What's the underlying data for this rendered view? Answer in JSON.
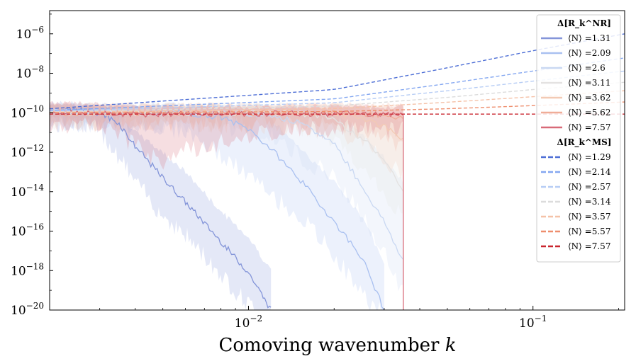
{
  "chart_data": {
    "type": "line",
    "xscale": "log",
    "yscale": "log",
    "xlim": [
      0.002,
      0.21
    ],
    "ylim": [
      1e-20,
      1.5e-05
    ],
    "xlabel": "Comoving wavenumber k",
    "ylabel": "",
    "x_ticks": [
      {
        "value": 0.01,
        "label": "10^-2"
      },
      {
        "value": 0.1,
        "label": "10^-1"
      }
    ],
    "y_ticks": [
      {
        "value": 1e-06,
        "label": "10^-6"
      },
      {
        "value": 1e-08,
        "label": "10^-8"
      },
      {
        "value": 1e-10,
        "label": "10^-10"
      },
      {
        "value": 1e-12,
        "label": "10^-12"
      },
      {
        "value": 1e-14,
        "label": "10^-14"
      },
      {
        "value": 1e-16,
        "label": "10^-16"
      },
      {
        "value": 1e-18,
        "label": "10^-18"
      },
      {
        "value": 1e-20,
        "label": "10^-20"
      }
    ],
    "legend": {
      "position": "upper-right",
      "groups": [
        {
          "title": "Δ[R_k^NR]",
          "style": "solid",
          "entries": [
            {
              "label": "⟨N⟩ =1.31",
              "color": "#8495d9"
            },
            {
              "label": "⟨N⟩ =2.09",
              "color": "#a9c0f0"
            },
            {
              "label": "⟨N⟩ =2.6",
              "color": "#c9d8f2"
            },
            {
              "label": "⟨N⟩ =3.11",
              "color": "#e4e2e1"
            },
            {
              "label": "⟨N⟩ =3.62",
              "color": "#f3cab4"
            },
            {
              "label": "⟨N⟩ =5.62",
              "color": "#f0ad98"
            },
            {
              "label": "⟨N⟩ =7.57",
              "color": "#d86a78"
            }
          ]
        },
        {
          "title": "Δ[R_k^MS]",
          "style": "dashed",
          "entries": [
            {
              "label": "⟨N⟩ =1.29",
              "color": "#4e6fd6"
            },
            {
              "label": "⟨N⟩ =2.14",
              "color": "#84a7f1"
            },
            {
              "label": "⟨N⟩ =2.57",
              "color": "#b7cdf5"
            },
            {
              "label": "⟨N⟩ =3.14",
              "color": "#dcdcdc"
            },
            {
              "label": "⟨N⟩ =3.57",
              "color": "#f5c2a8"
            },
            {
              "label": "⟨N⟩ =5.57",
              "color": "#ee8e6d"
            },
            {
              "label": "⟨N⟩ =7.57",
              "color": "#c9262f"
            }
          ]
        }
      ]
    },
    "series_dashed": [
      {
        "name": "⟨N⟩ =1.29",
        "color": "#4e6fd6",
        "x": [
          0.002,
          0.02,
          0.05,
          0.1,
          0.21
        ],
        "y": [
          1.6e-10,
          1.5e-09,
          1.9e-08,
          1.4e-07,
          1e-06
        ]
      },
      {
        "name": "⟨N⟩ =2.14",
        "color": "#84a7f1",
        "x": [
          0.002,
          0.02,
          0.05,
          0.1,
          0.21
        ],
        "y": [
          1.3e-10,
          5e-10,
          3e-09,
          1.3e-08,
          6e-08
        ]
      },
      {
        "name": "⟨N⟩ =2.57",
        "color": "#b7cdf5",
        "x": [
          0.002,
          0.02,
          0.05,
          0.1,
          0.21
        ],
        "y": [
          1.2e-10,
          3.2e-10,
          1.3e-09,
          4e-09,
          1.3e-08
        ]
      },
      {
        "name": "⟨N⟩ =3.14",
        "color": "#dcdcdc",
        "x": [
          0.002,
          0.02,
          0.05,
          0.1,
          0.21
        ],
        "y": [
          1.1e-10,
          2.2e-10,
          6e-10,
          1.5e-09,
          3.5e-09
        ]
      },
      {
        "name": "⟨N⟩ =3.57",
        "color": "#f5c2a8",
        "x": [
          0.002,
          0.02,
          0.05,
          0.1,
          0.21
        ],
        "y": [
          1.05e-10,
          1.6e-10,
          3.4e-10,
          6.5e-10,
          1.3e-09
        ]
      },
      {
        "name": "⟨N⟩ =5.57",
        "color": "#ee8e6d",
        "x": [
          0.002,
          0.02,
          0.05,
          0.1,
          0.21
        ],
        "y": [
          1e-10,
          1.15e-10,
          1.6e-10,
          2.3e-10,
          3.5e-10
        ]
      },
      {
        "name": "⟨N⟩ =7.57",
        "color": "#c9262f",
        "x": [
          0.002,
          0.21
        ],
        "y": [
          8.5e-11,
          8.5e-11
        ]
      }
    ],
    "series_solid": [
      {
        "name": "⟨N⟩ =1.31",
        "color": "#8495d9",
        "x": [
          0.002,
          0.0025,
          0.003,
          0.0035,
          0.004,
          0.005,
          0.006,
          0.008,
          0.01,
          0.012
        ],
        "y": [
          1.2e-10,
          1.4e-10,
          1e-10,
          3e-11,
          2e-12,
          5e-14,
          3e-15,
          3e-17,
          8e-19,
          1e-20
        ],
        "band_low": [
          3e-11,
          5e-11,
          2e-11,
          1e-12,
          5e-14,
          1e-15,
          1e-16,
          1e-18,
          3e-20,
          1e-20
        ],
        "band_high": [
          3e-10,
          3e-10,
          2e-10,
          1.2e-10,
          1e-11,
          1e-12,
          1e-13,
          1e-15,
          5e-17,
          1e-18
        ]
      },
      {
        "name": "⟨N⟩ =2.09",
        "color": "#a9c0f0",
        "x": [
          0.002,
          0.004,
          0.006,
          0.008,
          0.01,
          0.012,
          0.015,
          0.02,
          0.025,
          0.03
        ],
        "y": [
          1.2e-10,
          1.1e-10,
          1e-10,
          6e-11,
          1.5e-11,
          1.5e-12,
          5e-14,
          3e-16,
          5e-18,
          1e-20
        ],
        "band_low": [
          5e-11,
          4e-11,
          2e-11,
          1e-12,
          1e-13,
          1e-14,
          1e-15,
          1e-17,
          1e-19,
          1e-20
        ],
        "band_high": [
          2.5e-10,
          2.5e-10,
          2.5e-10,
          2e-10,
          1.5e-10,
          5e-11,
          2e-12,
          3e-14,
          5e-16,
          3e-18
        ]
      },
      {
        "name": "⟨N⟩ =2.6",
        "color": "#c9d8f2",
        "x": [
          0.002,
          0.005,
          0.008,
          0.012,
          0.015,
          0.02,
          0.025,
          0.03,
          0.035
        ],
        "y": [
          1.1e-10,
          1e-10,
          1e-10,
          8e-11,
          3e-11,
          3e-12,
          2e-14,
          3e-16,
          3e-18
        ],
        "band_low": [
          5e-11,
          4e-11,
          3e-11,
          1e-11,
          1e-12,
          1e-13,
          1e-15,
          1e-17,
          1e-19
        ],
        "band_high": [
          2.5e-10,
          2.5e-10,
          2.5e-10,
          2.5e-10,
          2e-10,
          1e-10,
          1e-11,
          5e-13,
          3e-14
        ]
      },
      {
        "name": "⟨N⟩ =3.11",
        "color": "#e4e2e1",
        "x": [
          0.002,
          0.008,
          0.015,
          0.02,
          0.025,
          0.03,
          0.035
        ],
        "y": [
          1e-10,
          1e-10,
          1e-10,
          5e-11,
          5e-12,
          5e-13,
          1e-14
        ],
        "band_low": [
          5e-11,
          5e-11,
          3e-11,
          5e-12,
          3e-13,
          1e-14,
          1e-15
        ],
        "band_high": [
          2.5e-10,
          2.5e-10,
          2.5e-10,
          2.5e-10,
          2e-10,
          1e-10,
          3e-11
        ]
      },
      {
        "name": "⟨N⟩ =3.62",
        "color": "#f3cab4",
        "x": [
          0.002,
          0.01,
          0.02,
          0.025,
          0.03,
          0.035
        ],
        "y": [
          1e-10,
          1e-10,
          1e-10,
          6e-11,
          2e-11,
          5e-12
        ],
        "band_low": [
          5e-11,
          4e-11,
          2e-11,
          5e-12,
          5e-13,
          1e-13
        ],
        "band_high": [
          2.5e-10,
          2.5e-10,
          2.5e-10,
          2.5e-10,
          2.5e-10,
          2e-10
        ]
      },
      {
        "name": "⟨N⟩ =5.62",
        "color": "#f0ad98",
        "x": [
          0.002,
          0.01,
          0.02,
          0.03,
          0.035
        ],
        "y": [
          1e-10,
          1e-10,
          1e-10,
          8e-11,
          5e-11
        ],
        "band_low": [
          5e-11,
          5e-11,
          5e-11,
          1e-11,
          3e-12
        ],
        "band_high": [
          2.5e-10,
          2.5e-10,
          2.5e-10,
          2.5e-10,
          2.5e-10
        ]
      },
      {
        "name": "⟨N⟩ =7.57",
        "color": "#d86a78",
        "x": [
          0.002,
          0.0025,
          0.003,
          0.0035,
          0.004,
          0.005,
          0.006,
          0.008,
          0.01,
          0.015,
          0.02,
          0.025,
          0.03,
          0.035
        ],
        "y": [
          1e-10,
          1.1e-10,
          1e-10,
          9e-11,
          8e-11,
          9e-11,
          8.5e-11,
          9e-11,
          9e-11,
          9e-11,
          9e-11,
          9e-11,
          9e-11,
          9e-11
        ],
        "band_low": [
          3e-11,
          4e-11,
          3e-11,
          1e-11,
          3e-12,
          5e-13,
          2e-12,
          5e-12,
          1e-11,
          3e-11,
          2e-11,
          3e-11,
          2e-11,
          3e-11
        ],
        "band_high": [
          3e-10,
          3e-10,
          2.5e-10,
          2e-10,
          2e-10,
          2e-10,
          2e-10,
          2e-10,
          2e-10,
          2e-10,
          2e-10,
          2e-10,
          2e-10,
          2e-10
        ],
        "cutoff_x": 0.035
      }
    ]
  }
}
